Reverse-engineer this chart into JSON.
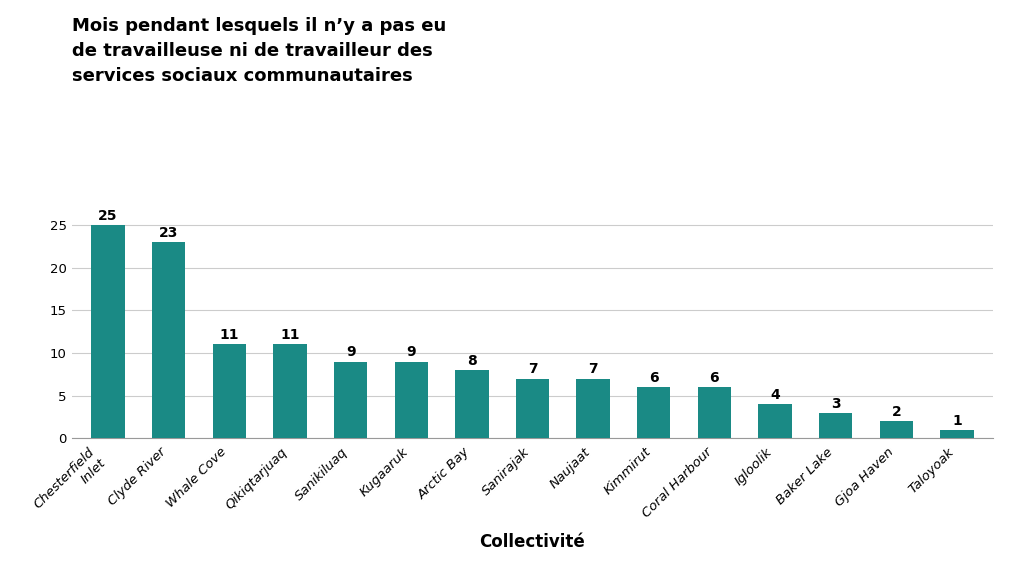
{
  "categories": [
    "Chesterfield\nInlet",
    "Clyde River",
    "Whale Cove",
    "Qikiqtarjuaq",
    "Sanikiluaq",
    "Kugaaruk",
    "Arctic Bay",
    "Sanirajak",
    "Naujaat",
    "Kimmirut",
    "Coral Harbour",
    "Igloolik",
    "Baker Lake",
    "Gjoa Haven",
    "Taloyoak"
  ],
  "values": [
    25,
    23,
    11,
    11,
    9,
    9,
    8,
    7,
    7,
    6,
    6,
    4,
    3,
    2,
    1
  ],
  "bar_color": "#1a8a85",
  "title_lines": [
    "Mois pendant lesquels il n’y a pas eu",
    "de travailleuse ni de travailleur des",
    "services sociaux communautaires"
  ],
  "xlabel": "Collectivité",
  "ylim": [
    0,
    27
  ],
  "yticks": [
    0,
    5,
    10,
    15,
    20,
    25
  ],
  "title_fontsize": 13,
  "label_fontsize": 10,
  "tick_fontsize": 9.5,
  "xlabel_fontsize": 12,
  "background_color": "#ffffff",
  "grid_color": "#cccccc",
  "bar_width": 0.55
}
